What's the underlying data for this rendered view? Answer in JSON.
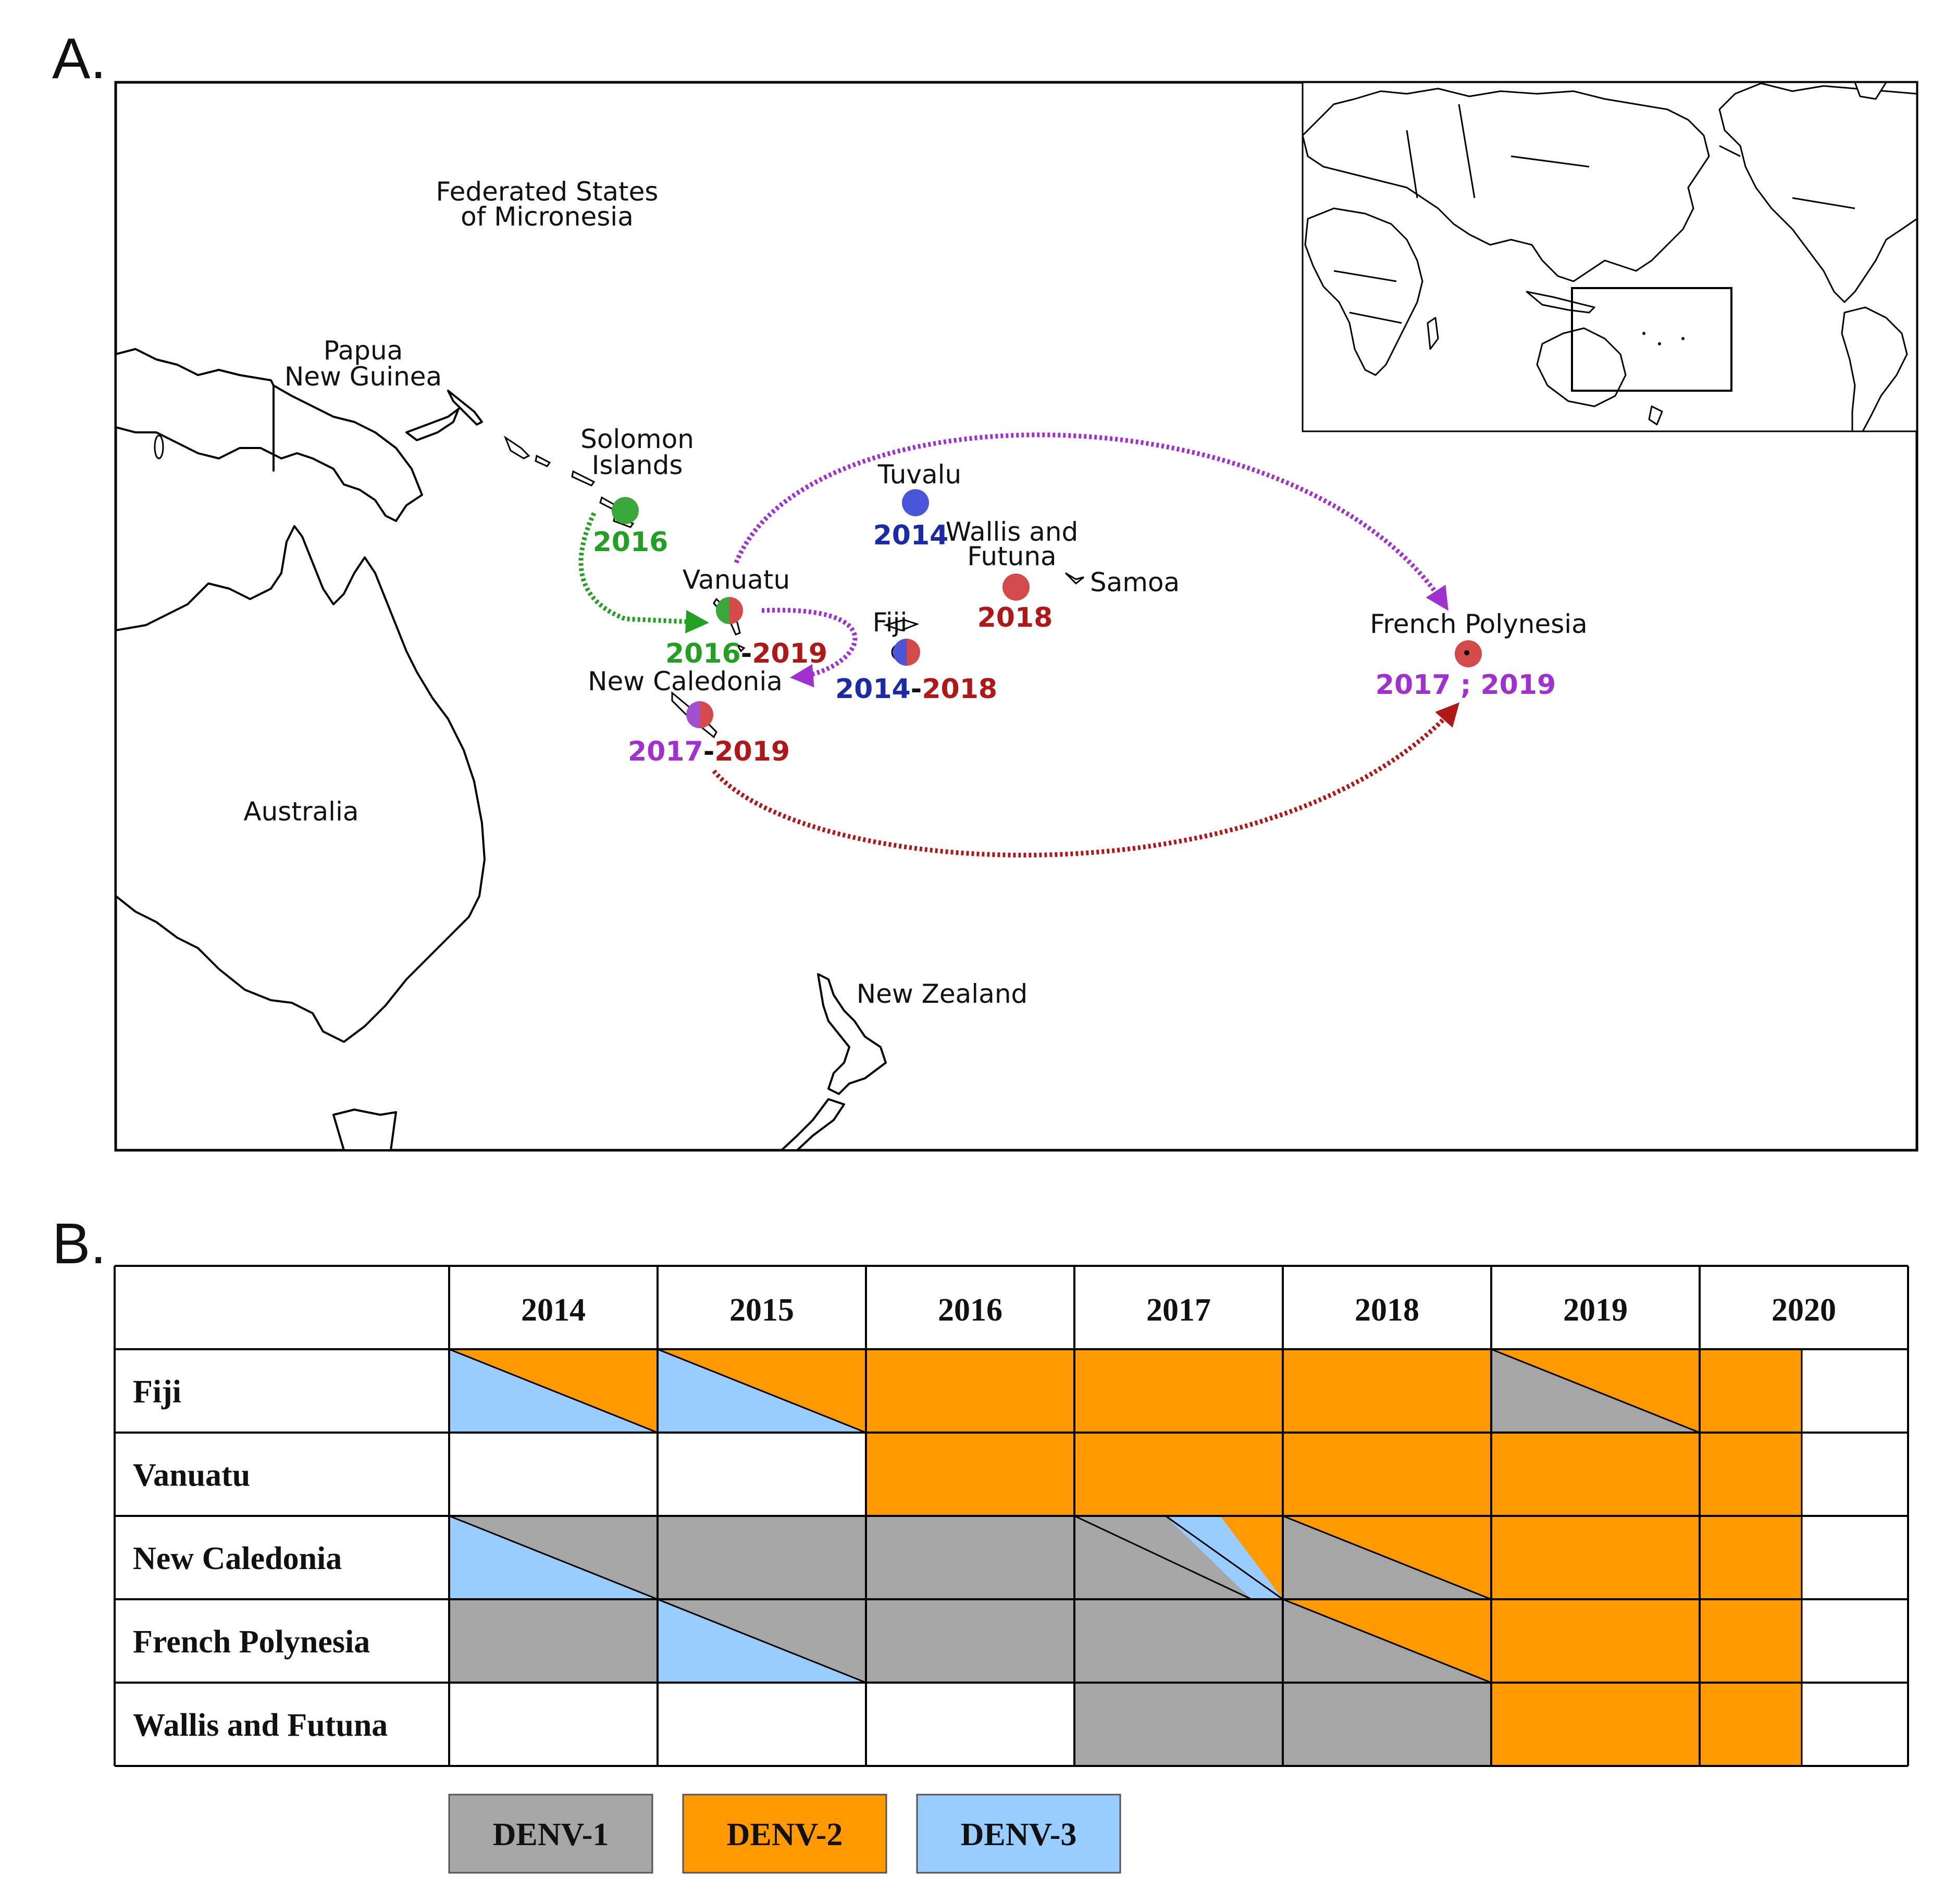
{
  "colors": {
    "denv1": "#a6a6a6",
    "denv2": "#ff9900",
    "denv3": "#99ccff",
    "arrow_green": "#22a022",
    "arrow_purple": "#a030d0",
    "arrow_red": "#b01818",
    "dot_red": "#d44a4a",
    "dot_blue": "#4a55d8",
    "dot_green": "#3aa83a",
    "dot_purple": "#a050d0"
  },
  "panel_a": {
    "label": "A.",
    "countries": {
      "micronesia_line1": "Federated States",
      "micronesia_line2": "of Micronesia",
      "png_line1": "Papua",
      "png_line2": "New Guinea",
      "solomon_line1": "Solomon",
      "solomon_line2": "Islands",
      "tuvalu": "Tuvalu",
      "wallis_line1": "Wallis and",
      "wallis_line2": "Futuna",
      "samoa": "Samoa",
      "vanuatu": "Vanuatu",
      "fiji": "Fiji",
      "new_caledonia": "New Caledonia",
      "french_polynesia": "French Polynesia",
      "australia": "Australia",
      "new_zealand": "New Zealand"
    },
    "years": {
      "solomon": "2016",
      "tuvalu": "2014",
      "wallis": "2018",
      "vanuatu_a": "2016",
      "vanuatu_sep": "-",
      "vanuatu_b": "2019",
      "fiji_a": "2014",
      "fiji_sep": "-",
      "fiji_b": "2018",
      "newcal_a": "2017",
      "newcal_sep": "-",
      "newcal_b": "2019",
      "fp": "2017 ; 2019"
    }
  },
  "panel_b": {
    "label": "B.",
    "years": [
      "2014",
      "2015",
      "2016",
      "2017",
      "2018",
      "2019",
      "2020"
    ],
    "rows": [
      {
        "name": "Fiji",
        "cells": [
          {
            "type": "diag",
            "upper": "denv2",
            "lower": "denv3"
          },
          {
            "type": "diag",
            "upper": "denv2",
            "lower": "denv3"
          },
          {
            "type": "solid",
            "fill": "denv2"
          },
          {
            "type": "solid",
            "fill": "denv2"
          },
          {
            "type": "solid",
            "fill": "denv2"
          },
          {
            "type": "diag",
            "upper": "denv2",
            "lower": "denv1"
          },
          {
            "type": "part",
            "fill": "denv2"
          }
        ]
      },
      {
        "name": "Vanuatu",
        "cells": [
          {
            "type": "empty"
          },
          {
            "type": "empty"
          },
          {
            "type": "solid",
            "fill": "denv2"
          },
          {
            "type": "solid",
            "fill": "denv2"
          },
          {
            "type": "solid",
            "fill": "denv2"
          },
          {
            "type": "solid",
            "fill": "denv2"
          },
          {
            "type": "part",
            "fill": "denv2"
          }
        ]
      },
      {
        "name": "New Caledonia",
        "cells": [
          {
            "type": "diag",
            "upper": "denv1",
            "lower": "denv3"
          },
          {
            "type": "solid",
            "fill": "denv1"
          },
          {
            "type": "solid",
            "fill": "denv1"
          },
          {
            "type": "tri3",
            "a": "denv1",
            "b": "denv3",
            "c": "denv2"
          },
          {
            "type": "diag",
            "upper": "denv2",
            "lower": "denv1"
          },
          {
            "type": "solid",
            "fill": "denv2"
          },
          {
            "type": "part",
            "fill": "denv2"
          }
        ]
      },
      {
        "name": "French Polynesia",
        "cells": [
          {
            "type": "solid",
            "fill": "denv1"
          },
          {
            "type": "diag",
            "upper": "denv1",
            "lower": "denv3"
          },
          {
            "type": "solid",
            "fill": "denv1"
          },
          {
            "type": "solid",
            "fill": "denv1"
          },
          {
            "type": "diag",
            "upper": "denv2",
            "lower": "denv1"
          },
          {
            "type": "solid",
            "fill": "denv2"
          },
          {
            "type": "part",
            "fill": "denv2"
          }
        ]
      },
      {
        "name": "Wallis and Futuna",
        "cells": [
          {
            "type": "empty"
          },
          {
            "type": "empty"
          },
          {
            "type": "empty"
          },
          {
            "type": "solid",
            "fill": "denv1"
          },
          {
            "type": "solid",
            "fill": "denv1"
          },
          {
            "type": "solid",
            "fill": "denv2"
          },
          {
            "type": "part",
            "fill": "denv2"
          }
        ]
      }
    ],
    "legend": [
      {
        "key": "denv1",
        "label": "DENV-1"
      },
      {
        "key": "denv2",
        "label": "DENV-2"
      },
      {
        "key": "denv3",
        "label": "DENV-3"
      }
    ]
  }
}
